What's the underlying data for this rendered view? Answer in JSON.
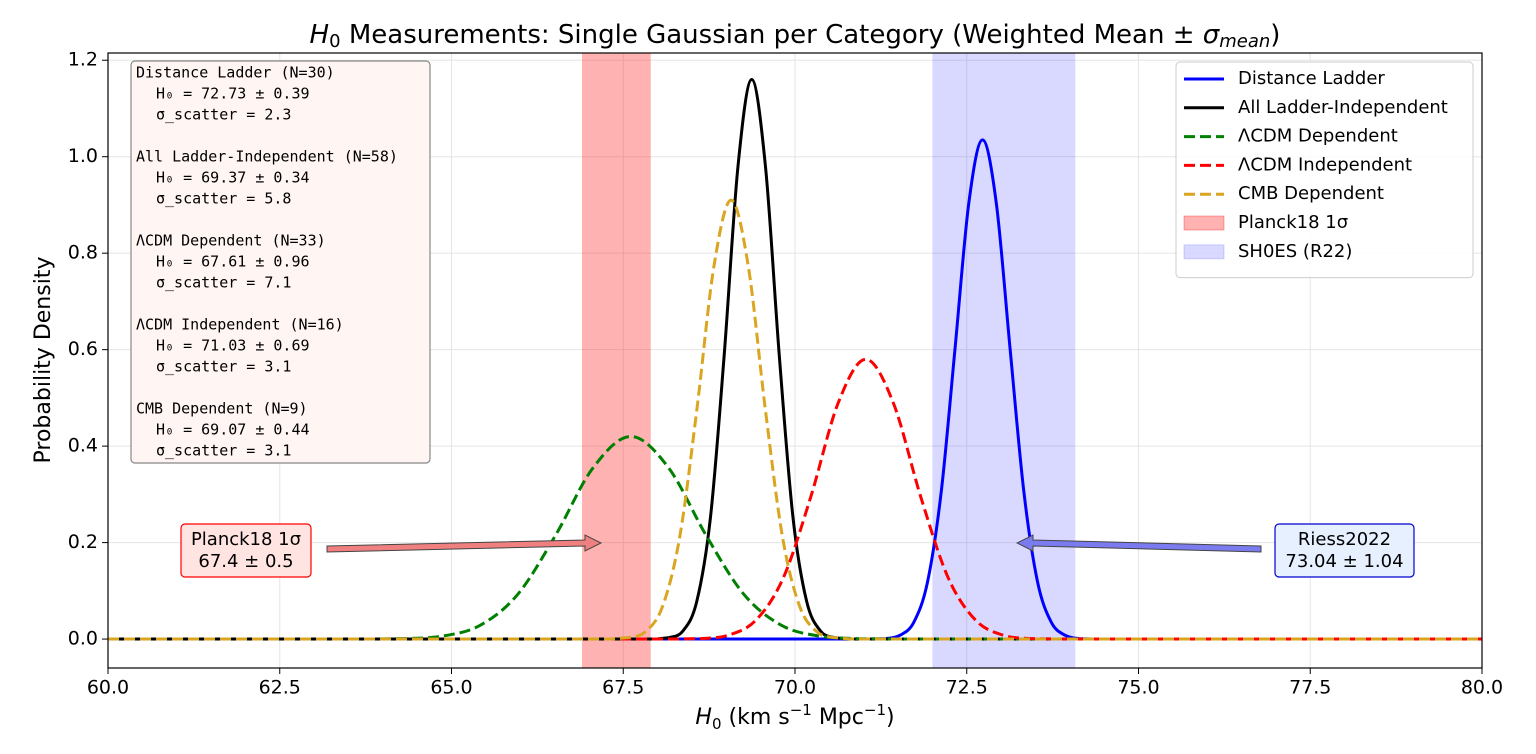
{
  "chart_data": {
    "type": "line",
    "title": [
      "H",
      "0",
      " Measurements: Single Gaussian per Category (Weighted Mean ± ",
      "σ",
      "mean",
      ")"
    ],
    "xlabel": [
      "H",
      "0",
      " (km s",
      "−1",
      " Mpc",
      "−1",
      ")"
    ],
    "ylabel": "Probability Density",
    "xlim": [
      60,
      80
    ],
    "ylim": [
      -0.06,
      1.215
    ],
    "xticks": [
      {
        "value": 60,
        "label": "60.0"
      },
      62.5,
      {
        "value": 65,
        "label": "65.0"
      },
      67.5,
      {
        "value": 70,
        "label": "70.0"
      },
      72.5,
      {
        "value": 75,
        "label": "75.0"
      },
      77.5,
      {
        "value": 80,
        "label": "80.0"
      }
    ],
    "yticks": [
      {
        "value": 0,
        "label": "0.0"
      },
      0.2,
      0.4,
      0.6,
      0.8,
      {
        "value": 1,
        "label": "1.0"
      },
      1.2
    ],
    "grid": true,
    "legend": "upper right",
    "series": [
      {
        "name": "Distance Ladder",
        "color": "#0000ff",
        "dashed": false,
        "x": [
          60,
          71.13,
          71.33,
          71.53,
          71.73,
          71.93,
          72.13,
          72.33,
          72.53,
          72.73,
          72.93,
          73.13,
          73.33,
          73.53,
          73.73,
          73.93,
          74.13,
          74.33,
          80
        ],
        "values": [
          0,
          0,
          0.001,
          0.008,
          0.035,
          0.119,
          0.307,
          0.603,
          0.904,
          1.035,
          0.904,
          0.603,
          0.307,
          0.119,
          0.035,
          0.008,
          0.001,
          0,
          0
        ]
      },
      {
        "name": "All Ladder-Independent",
        "color": "#000000",
        "dashed": false,
        "x": [
          60,
          67.97,
          68.17,
          68.37,
          68.57,
          68.77,
          68.97,
          69.17,
          69.37,
          69.57,
          69.77,
          69.97,
          70.17,
          70.37,
          70.57,
          70.77,
          80
        ],
        "values": [
          0,
          0,
          0.003,
          0.017,
          0.078,
          0.253,
          0.59,
          0.98,
          1.16,
          0.98,
          0.59,
          0.253,
          0.078,
          0.017,
          0.003,
          0,
          0
        ]
      },
      {
        "name": "ΛCDM Dependent",
        "color": "#008000",
        "dashed": true,
        "x": [
          60,
          63.76,
          64.31,
          64.86,
          65.41,
          65.96,
          66.51,
          67.06,
          67.61,
          68.16,
          68.71,
          69.26,
          69.81,
          70.36,
          70.91,
          71.46,
          80
        ],
        "values": [
          0,
          0,
          0.001,
          0.006,
          0.028,
          0.092,
          0.214,
          0.355,
          0.42,
          0.355,
          0.214,
          0.092,
          0.028,
          0.006,
          0.001,
          0,
          0
        ]
      },
      {
        "name": "ΛCDM Independent",
        "color": "#ff0000",
        "dashed": true,
        "x": [
          60,
          68.23,
          68.63,
          69.03,
          69.43,
          69.83,
          70.23,
          70.63,
          71.03,
          71.43,
          71.83,
          72.23,
          72.63,
          73.03,
          73.43,
          73.83,
          80
        ],
        "values": [
          0,
          0,
          0.001,
          0.008,
          0.039,
          0.127,
          0.295,
          0.49,
          0.58,
          0.49,
          0.295,
          0.127,
          0.039,
          0.008,
          0.001,
          0,
          0
        ]
      },
      {
        "name": "CMB Dependent",
        "color": "#daa520",
        "dashed": true,
        "x": [
          60,
          67.32,
          67.57,
          67.82,
          68.07,
          68.32,
          68.57,
          68.82,
          69.07,
          69.32,
          69.57,
          69.82,
          70.07,
          70.32,
          70.57,
          70.82,
          80
        ],
        "values": [
          0,
          0,
          0.003,
          0.015,
          0.067,
          0.21,
          0.474,
          0.773,
          0.91,
          0.773,
          0.474,
          0.21,
          0.067,
          0.015,
          0.003,
          0,
          0
        ]
      }
    ],
    "bands": [
      {
        "name": "Planck18 1σ",
        "color": "#ff0000",
        "alpha": 0.3,
        "x": [
          66.9,
          67.9
        ]
      },
      {
        "name": "SH0ES (R22)",
        "color": "#0000ff",
        "alpha": 0.15,
        "x": [
          72,
          74.08
        ]
      }
    ],
    "stats_box": [
      {
        "title": "Distance Ladder (N=30)",
        "lines": [
          "H₀ = 72.73 ± 0.39",
          "σ_scatter = 2.3"
        ]
      },
      {
        "title": "All Ladder-Independent (N=58)",
        "lines": [
          "H₀ = 69.37 ± 0.34",
          "σ_scatter = 5.8"
        ]
      },
      {
        "title": "ΛCDM Dependent (N=33)",
        "lines": [
          "H₀ = 67.61 ± 0.96",
          "σ_scatter = 7.1"
        ]
      },
      {
        "title": "ΛCDM Independent (N=16)",
        "lines": [
          "H₀ = 71.03 ± 0.69",
          "σ_scatter = 3.1"
        ]
      },
      {
        "title": "CMB Dependent (N=9)",
        "lines": [
          "H₀ = 69.07 ± 0.44",
          "σ_scatter = 3.1"
        ]
      }
    ],
    "annotations": [
      {
        "lines": [
          "Planck18 1σ",
          "67.4 ± 0.5"
        ],
        "color": "#ff0000",
        "fill": "#ffe4e1",
        "arrow": "#f08080"
      },
      {
        "lines": [
          "Riess2022",
          "73.04 ± 1.04"
        ],
        "color": "#0000cd",
        "fill": "#e6f0ff",
        "arrow": "#7b7bf0"
      }
    ]
  }
}
